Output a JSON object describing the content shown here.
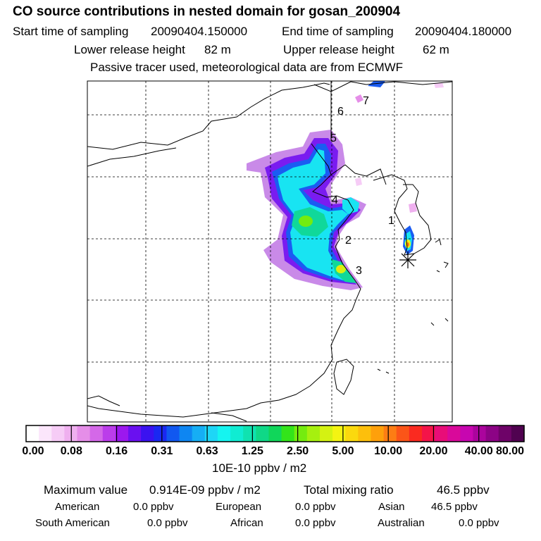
{
  "title": "CO  source contributions in nested domain for gosan_200904",
  "header": {
    "start_label": "Start time of sampling",
    "start_value": "20090404.150000",
    "end_label": "End time of sampling",
    "end_value": "20090404.180000",
    "lower_label": "Lower release height",
    "lower_value": "82 m",
    "upper_label": "Upper release height",
    "upper_value": "62 m",
    "note": "Passive tracer used, meteorological data are from ECMWF"
  },
  "map": {
    "trajectory_labels": [
      "1",
      "2",
      "3",
      "4",
      "5",
      "6",
      "7"
    ],
    "receptor_marker": "asterisk-icon"
  },
  "colorbar": {
    "ticks": [
      "0.00",
      "0.08",
      "0.16",
      "0.31",
      "0.63",
      "1.25",
      "2.50",
      "5.00",
      "10.00",
      "20.00",
      "40.00",
      "80.00"
    ],
    "colors": [
      "#ffffff",
      "#fbe6fb",
      "#f6ccf6",
      "#efb0ef",
      "#e58ee8",
      "#d468e8",
      "#bb3dea",
      "#9c18ee",
      "#6a10f0",
      "#3a12f0",
      "#1a28f2",
      "#1158f0",
      "#0e86f2",
      "#16aef4",
      "#1ed6f6",
      "#15f4f0",
      "#10ecd2",
      "#10e2b0",
      "#0fd887",
      "#10d65a",
      "#33e41a",
      "#74ec0f",
      "#a6f00f",
      "#d4f212",
      "#f4f412",
      "#fbd90e",
      "#fdbf0c",
      "#fea00b",
      "#fd7d14",
      "#fb5518",
      "#fa2a20",
      "#f41449",
      "#e80d78",
      "#d9099a",
      "#c706b0",
      "#ab049d",
      "#8c0385",
      "#6e0368",
      "#500250"
    ],
    "unit": "10E-10 ppbv / m2"
  },
  "summary": {
    "max_label": "Maximum value",
    "max_value": "0.914E-09 ppbv / m2",
    "total_label": "Total mixing ratio",
    "total_value": "46.5 ppbv",
    "sources": [
      {
        "name": "American",
        "value": "0.0 ppbv"
      },
      {
        "name": "European",
        "value": "0.0 ppbv"
      },
      {
        "name": "Asian",
        "value": "46.5 ppbv"
      },
      {
        "name": "South American",
        "value": "0.0 ppbv"
      },
      {
        "name": "African",
        "value": "0.0 ppbv"
      },
      {
        "name": "Australian",
        "value": "0.0 ppbv"
      }
    ]
  }
}
